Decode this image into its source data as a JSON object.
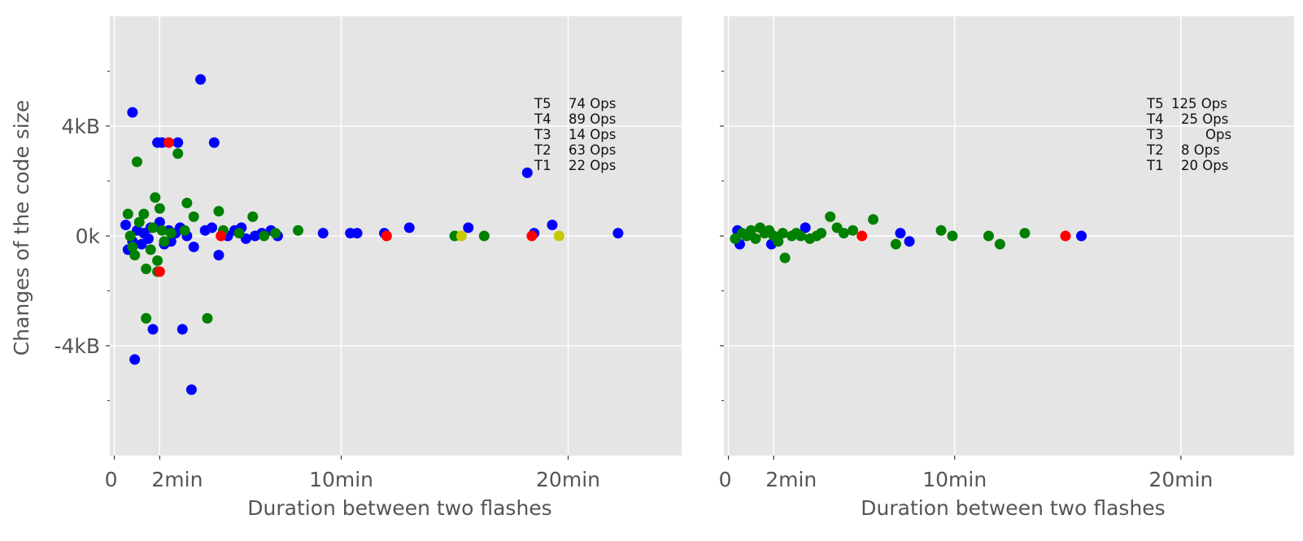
{
  "colors": {
    "background": "#e5e5e5",
    "grid": "#ffffff",
    "text": "#555555",
    "T1": "#ff0000",
    "T2": "#0000ff",
    "T3": "#c8c800",
    "T4": "#008000",
    "T5": "#0000ff"
  },
  "chart_data": [
    {
      "type": "scatter",
      "title": "",
      "xlabel": "Duration between two flashes",
      "ylabel": "Changes of the  code size",
      "xlim": [
        -0.2,
        25
      ],
      "ylim": [
        -8,
        8
      ],
      "x_unit": "min",
      "y_unit": "kB",
      "x_ticks": [
        0,
        2,
        10,
        20
      ],
      "x_tick_labels": [
        "0",
        "2min",
        "10min",
        "20min"
      ],
      "y_ticks": [
        -4,
        0,
        4
      ],
      "y_tick_labels": [
        "-4kB",
        "0k",
        "4kB"
      ],
      "y_minor_ticks": [
        -6,
        -2,
        2,
        6
      ],
      "grid": true,
      "legend": [
        {
          "label": "T5",
          "count": "74 Ops"
        },
        {
          "label": "T4",
          "count": "89 Ops"
        },
        {
          "label": "T3",
          "count": "14 Ops"
        },
        {
          "label": "T2",
          "count": "63 Ops"
        },
        {
          "label": "T1",
          "count": "22 Ops"
        }
      ],
      "legend_position": "top-right",
      "series": [
        {
          "key": "T2",
          "points": [
            [
              0.5,
              0.4
            ],
            [
              0.6,
              -0.5
            ],
            [
              0.8,
              4.5
            ],
            [
              0.8,
              -0.2
            ],
            [
              0.9,
              -4.5
            ],
            [
              1.0,
              0.2
            ],
            [
              1.2,
              -0.3
            ],
            [
              1.3,
              0.1
            ],
            [
              1.5,
              -0.1
            ],
            [
              1.6,
              0.3
            ],
            [
              1.7,
              -3.4
            ],
            [
              1.9,
              3.4
            ],
            [
              2.0,
              0.5
            ],
            [
              2.1,
              3.4
            ],
            [
              2.2,
              -0.3
            ],
            [
              2.4,
              0.2
            ],
            [
              2.5,
              -0.2
            ],
            [
              2.7,
              0.1
            ],
            [
              2.8,
              3.4
            ],
            [
              2.9,
              0.3
            ],
            [
              3.0,
              -3.4
            ],
            [
              3.2,
              0.0
            ],
            [
              3.5,
              -0.4
            ],
            [
              3.4,
              -5.6
            ],
            [
              3.8,
              5.7
            ],
            [
              4.0,
              0.2
            ],
            [
              4.3,
              0.3
            ],
            [
              4.4,
              3.4
            ],
            [
              4.6,
              -0.7
            ],
            [
              4.8,
              0.1
            ],
            [
              5.0,
              0.0
            ],
            [
              5.3,
              0.2
            ],
            [
              5.6,
              0.3
            ],
            [
              5.8,
              -0.1
            ],
            [
              6.2,
              0.0
            ],
            [
              6.5,
              0.1
            ],
            [
              6.9,
              0.2
            ],
            [
              7.2,
              0.0
            ],
            [
              9.2,
              0.1
            ],
            [
              10.4,
              0.1
            ],
            [
              10.7,
              0.1
            ],
            [
              11.9,
              0.1
            ],
            [
              13.0,
              0.3
            ],
            [
              15.6,
              0.3
            ],
            [
              18.2,
              2.3
            ],
            [
              18.5,
              0.1
            ],
            [
              19.3,
              0.4
            ],
            [
              22.2,
              0.1
            ]
          ]
        },
        {
          "key": "T4",
          "points": [
            [
              0.6,
              0.8
            ],
            [
              0.7,
              0.0
            ],
            [
              0.8,
              -0.4
            ],
            [
              0.9,
              -0.7
            ],
            [
              1.0,
              2.7
            ],
            [
              1.1,
              0.5
            ],
            [
              1.3,
              0.8
            ],
            [
              1.4,
              -1.2
            ],
            [
              1.4,
              -3.0
            ],
            [
              1.6,
              -0.5
            ],
            [
              1.7,
              0.3
            ],
            [
              1.8,
              1.4
            ],
            [
              1.9,
              -0.9
            ],
            [
              1.9,
              -1.3
            ],
            [
              2.0,
              1.0
            ],
            [
              2.1,
              0.2
            ],
            [
              2.2,
              -0.2
            ],
            [
              2.5,
              0.1
            ],
            [
              2.8,
              3.0
            ],
            [
              3.1,
              0.2
            ],
            [
              3.2,
              1.2
            ],
            [
              3.5,
              0.7
            ],
            [
              4.1,
              -3.0
            ],
            [
              4.6,
              0.9
            ],
            [
              4.8,
              0.2
            ],
            [
              5.5,
              0.1
            ],
            [
              6.1,
              0.7
            ],
            [
              6.6,
              0.0
            ],
            [
              7.1,
              0.1
            ],
            [
              8.1,
              0.2
            ],
            [
              15.0,
              0.0
            ],
            [
              16.3,
              0.0
            ]
          ]
        },
        {
          "key": "T1",
          "points": [
            [
              2.4,
              3.4
            ],
            [
              2.0,
              -1.3
            ],
            [
              4.7,
              0.0
            ],
            [
              12.0,
              0.0
            ],
            [
              18.4,
              0.0
            ]
          ]
        },
        {
          "key": "T3",
          "points": [
            [
              15.3,
              0.0
            ],
            [
              19.6,
              0.0
            ]
          ]
        }
      ]
    },
    {
      "type": "scatter",
      "title": "",
      "xlabel": "Duration between two flashes",
      "ylabel": "",
      "xlim": [
        -0.2,
        25
      ],
      "ylim": [
        -8,
        8
      ],
      "x_unit": "min",
      "y_unit": "kB",
      "x_ticks": [
        0,
        2,
        10,
        20
      ],
      "x_tick_labels": [
        "0",
        "2min",
        "10min",
        "20min"
      ],
      "y_ticks": [
        -4,
        0,
        4
      ],
      "y_tick_labels": [
        "",
        "",
        ""
      ],
      "y_minor_ticks": [
        -6,
        -2,
        2,
        6
      ],
      "grid": true,
      "legend": [
        {
          "label": "T5",
          "count": "125 Ops"
        },
        {
          "label": "T4",
          "count": "25 Ops"
        },
        {
          "label": "T3",
          "count": "Ops"
        },
        {
          "label": "T2",
          "count": "8 Ops"
        },
        {
          "label": "T1",
          "count": "20 Ops"
        }
      ],
      "legend_position": "top-right",
      "series": [
        {
          "key": "T2",
          "points": [
            [
              0.4,
              0.2
            ],
            [
              0.5,
              -0.3
            ],
            [
              1.9,
              -0.3
            ],
            [
              3.4,
              0.3
            ],
            [
              7.6,
              0.1
            ],
            [
              8.0,
              -0.2
            ],
            [
              15.6,
              0.0
            ]
          ]
        },
        {
          "key": "T4",
          "points": [
            [
              0.3,
              -0.1
            ],
            [
              0.6,
              0.1
            ],
            [
              0.8,
              0.0
            ],
            [
              1.0,
              0.2
            ],
            [
              1.2,
              -0.1
            ],
            [
              1.4,
              0.3
            ],
            [
              1.6,
              0.1
            ],
            [
              1.8,
              0.2
            ],
            [
              2.0,
              0.0
            ],
            [
              2.2,
              -0.2
            ],
            [
              2.4,
              0.1
            ],
            [
              2.5,
              -0.8
            ],
            [
              2.8,
              0.0
            ],
            [
              3.0,
              0.1
            ],
            [
              3.2,
              0.0
            ],
            [
              3.6,
              -0.1
            ],
            [
              3.9,
              0.0
            ],
            [
              4.1,
              0.1
            ],
            [
              4.5,
              0.7
            ],
            [
              4.8,
              0.3
            ],
            [
              5.1,
              0.1
            ],
            [
              5.5,
              0.2
            ],
            [
              6.4,
              0.6
            ],
            [
              7.4,
              -0.3
            ],
            [
              9.4,
              0.2
            ],
            [
              9.9,
              0.0
            ],
            [
              11.5,
              0.0
            ],
            [
              12.0,
              -0.3
            ],
            [
              13.1,
              0.1
            ]
          ]
        },
        {
          "key": "T1",
          "points": [
            [
              5.9,
              0.0
            ],
            [
              14.9,
              0.0
            ]
          ]
        }
      ]
    }
  ]
}
